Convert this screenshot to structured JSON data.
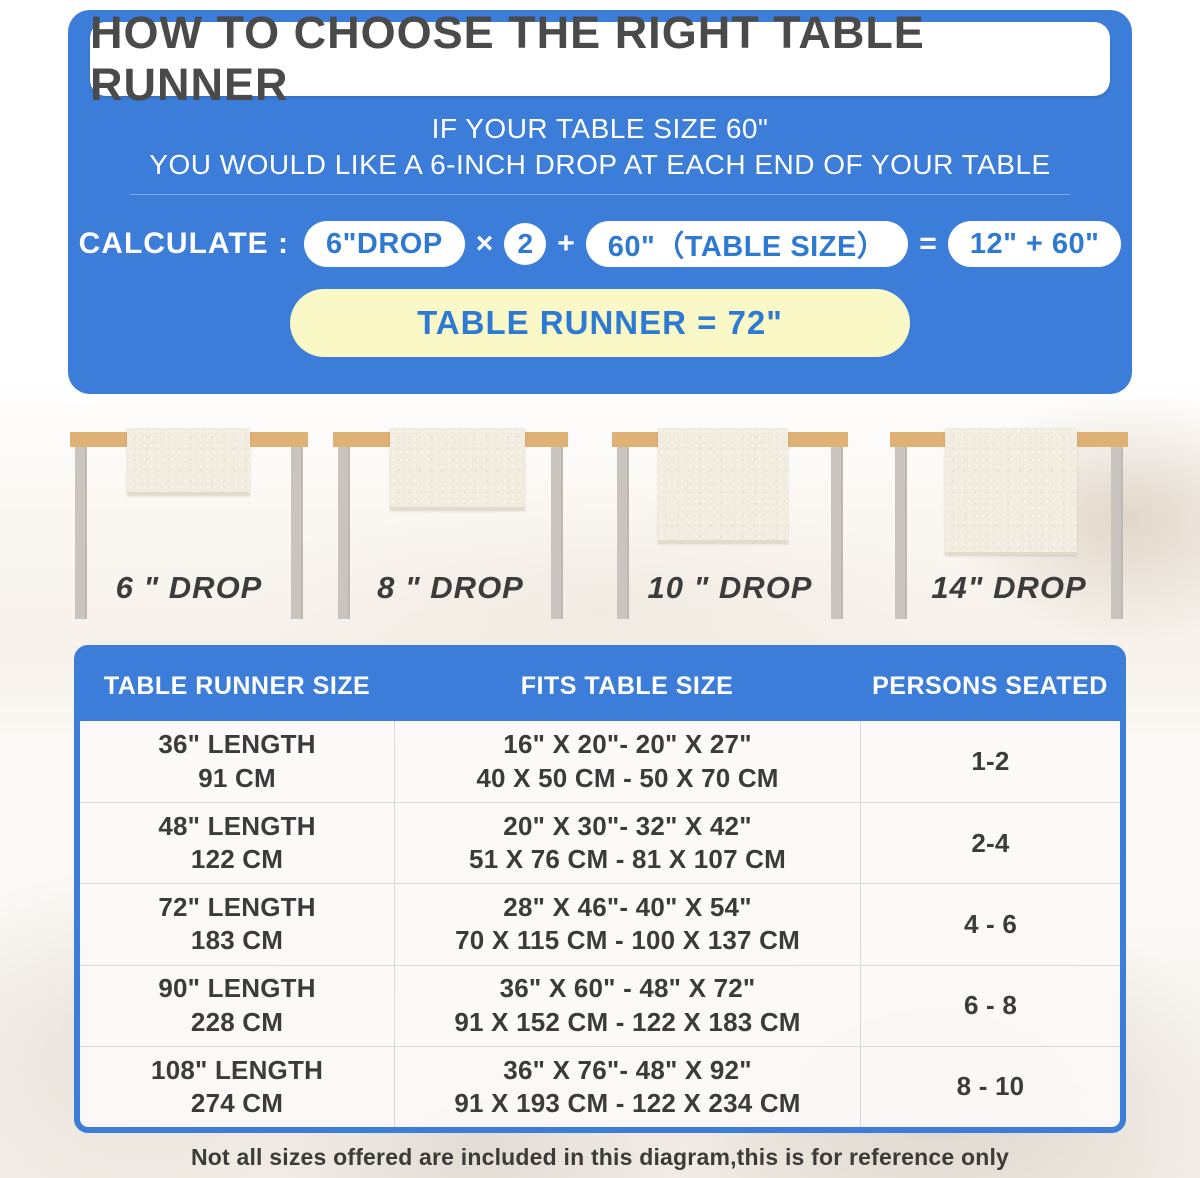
{
  "colors": {
    "blue": "#3B7DD8",
    "pill-text-blue": "#2E79D2",
    "yellow": "#FAF8C6",
    "wood": "#DFB175",
    "leg-gray": "#C9C4BF",
    "runner-cream": "#F1ECDF",
    "title-gray": "#4A4A4A",
    "text-dark": "#3B3B3B"
  },
  "banner": {
    "title": "HOW TO CHOOSE THE RIGHT TABLE RUNNER",
    "intro_line1": "IF YOUR TABLE SIZE 60\"",
    "intro_line2": "YOU WOULD LIKE A 6-INCH DROP AT EACH END OF YOUR TABLE",
    "calculate_label": "CALCULATE :",
    "drop_pill": "6\"DROP",
    "times_operator": "×",
    "multiplier": "2",
    "plus_operator": "+",
    "table_size_pill": "60\"（TABLE SIZE）",
    "equals_operator": "=",
    "sum_pill": "12\" + 60\"",
    "result": "TABLE RUNNER = 72\""
  },
  "drops": [
    {
      "label": "6 \" DROP"
    },
    {
      "label": "8 \" DROP"
    },
    {
      "label": "10 \" DROP"
    },
    {
      "label": "14\" DROP"
    }
  ],
  "size_table": {
    "headers": [
      "TABLE RUNNER SIZE",
      "FITS TABLE SIZE",
      "PERSONS SEATED"
    ],
    "rows": [
      {
        "runner_size": "36\" LENGTH\n91 CM",
        "fits": "16\" X 20\"- 20\" X 27\"\n40 X 50 CM - 50 X 70 CM",
        "persons": "1-2"
      },
      {
        "runner_size": "48\" LENGTH\n122 CM",
        "fits": "20\" X 30\"- 32\" X 42\"\n51 X 76 CM - 81 X 107 CM",
        "persons": "2-4"
      },
      {
        "runner_size": "72\" LENGTH\n183 CM",
        "fits": "28\" X 46\"- 40\" X 54\"\n70 X 115 CM - 100 X 137 CM",
        "persons": "4 - 6"
      },
      {
        "runner_size": "90\" LENGTH\n228 CM",
        "fits": "36\" X 60\" - 48\" X 72\"\n91 X 152 CM - 122 X 183 CM",
        "persons": "6 - 8"
      },
      {
        "runner_size": "108\" LENGTH\n274 CM",
        "fits": "36\" X 76\"- 48\" X 92\"\n91 X 193 CM - 122 X 234 CM",
        "persons": "8 - 10"
      }
    ]
  },
  "footer_note": "Not all sizes offered are included in this diagram,this is for reference only"
}
